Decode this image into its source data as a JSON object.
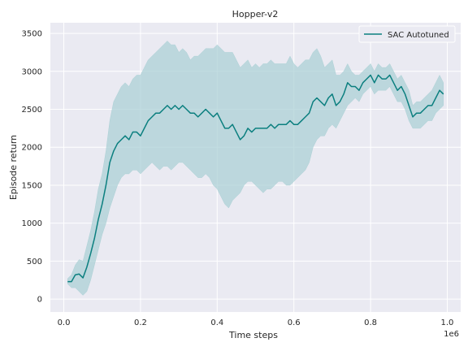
{
  "chart_data": {
    "type": "line",
    "title": "Hopper-v2",
    "xlabel": "Time steps",
    "ylabel": "Episode return",
    "x_offset_label": "1e6",
    "xlim": [
      -0.035,
      1.035
    ],
    "ylim": [
      -170,
      3640
    ],
    "xticks": [
      0.0,
      0.2,
      0.4,
      0.6,
      0.8,
      1.0
    ],
    "xtick_labels": [
      "0.0",
      "0.2",
      "0.4",
      "0.6",
      "0.8",
      "1.0"
    ],
    "yticks": [
      0,
      500,
      1000,
      1500,
      2000,
      2500,
      3000,
      3500
    ],
    "ytick_labels": [
      "0",
      "500",
      "1000",
      "1500",
      "2000",
      "2500",
      "3000",
      "3500"
    ],
    "grid": true,
    "legend_position": "top-right",
    "colors": {
      "line": "#0b7f7f",
      "band": "#a8cfd4",
      "background": "#eaeaf2",
      "grid": "#ffffff"
    },
    "series": [
      {
        "name": "SAC Autotuned",
        "x": [
          0.01,
          0.02,
          0.03,
          0.04,
          0.05,
          0.06,
          0.07,
          0.08,
          0.09,
          0.1,
          0.11,
          0.12,
          0.13,
          0.14,
          0.15,
          0.16,
          0.17,
          0.18,
          0.19,
          0.2,
          0.21,
          0.22,
          0.23,
          0.24,
          0.25,
          0.26,
          0.27,
          0.28,
          0.29,
          0.3,
          0.31,
          0.32,
          0.33,
          0.34,
          0.35,
          0.36,
          0.37,
          0.38,
          0.39,
          0.4,
          0.41,
          0.42,
          0.43,
          0.44,
          0.45,
          0.46,
          0.47,
          0.48,
          0.49,
          0.5,
          0.51,
          0.52,
          0.53,
          0.54,
          0.55,
          0.56,
          0.57,
          0.58,
          0.59,
          0.6,
          0.61,
          0.62,
          0.63,
          0.64,
          0.65,
          0.66,
          0.67,
          0.68,
          0.69,
          0.7,
          0.71,
          0.72,
          0.73,
          0.74,
          0.75,
          0.76,
          0.77,
          0.78,
          0.79,
          0.8,
          0.81,
          0.82,
          0.83,
          0.84,
          0.85,
          0.86,
          0.87,
          0.88,
          0.89,
          0.9,
          0.91,
          0.92,
          0.93,
          0.94,
          0.95,
          0.96,
          0.97,
          0.98,
          0.99
        ],
        "y": [
          230,
          230,
          320,
          330,
          280,
          420,
          600,
          800,
          1050,
          1250,
          1500,
          1800,
          1950,
          2050,
          2100,
          2150,
          2100,
          2200,
          2200,
          2150,
          2250,
          2350,
          2400,
          2450,
          2450,
          2500,
          2550,
          2500,
          2550,
          2500,
          2550,
          2500,
          2450,
          2450,
          2400,
          2450,
          2500,
          2450,
          2400,
          2450,
          2350,
          2250,
          2250,
          2300,
          2200,
          2100,
          2150,
          2250,
          2200,
          2250,
          2250,
          2250,
          2250,
          2300,
          2250,
          2300,
          2300,
          2300,
          2350,
          2300,
          2300,
          2350,
          2400,
          2450,
          2600,
          2650,
          2600,
          2550,
          2650,
          2700,
          2550,
          2600,
          2700,
          2850,
          2800,
          2800,
          2750,
          2850,
          2900,
          2950,
          2850,
          2950,
          2900,
          2900,
          2950,
          2850,
          2750,
          2800,
          2700,
          2550,
          2400,
          2450,
          2450,
          2500,
          2550,
          2550,
          2650,
          2750,
          2700
        ],
        "y_lower": [
          200,
          150,
          150,
          100,
          50,
          100,
          250,
          450,
          650,
          850,
          1000,
          1200,
          1350,
          1500,
          1600,
          1650,
          1650,
          1700,
          1700,
          1650,
          1700,
          1750,
          1800,
          1750,
          1700,
          1750,
          1750,
          1700,
          1750,
          1800,
          1800,
          1750,
          1700,
          1650,
          1600,
          1600,
          1650,
          1600,
          1500,
          1450,
          1350,
          1250,
          1200,
          1300,
          1350,
          1400,
          1500,
          1550,
          1550,
          1500,
          1450,
          1400,
          1450,
          1450,
          1500,
          1550,
          1550,
          1500,
          1500,
          1550,
          1600,
          1650,
          1700,
          1800,
          2000,
          2100,
          2150,
          2150,
          2250,
          2300,
          2250,
          2350,
          2450,
          2550,
          2600,
          2650,
          2600,
          2700,
          2750,
          2800,
          2700,
          2750,
          2750,
          2750,
          2800,
          2700,
          2600,
          2600,
          2500,
          2350,
          2250,
          2250,
          2250,
          2300,
          2350,
          2350,
          2450,
          2500,
          2550
        ],
        "y_upper": [
          270,
          320,
          450,
          520,
          500,
          700,
          900,
          1150,
          1450,
          1650,
          1950,
          2350,
          2600,
          2700,
          2800,
          2850,
          2800,
          2900,
          2950,
          2950,
          3050,
          3150,
          3200,
          3250,
          3300,
          3350,
          3400,
          3350,
          3350,
          3250,
          3300,
          3250,
          3150,
          3200,
          3200,
          3250,
          3300,
          3300,
          3300,
          3350,
          3300,
          3250,
          3250,
          3250,
          3150,
          3050,
          3100,
          3150,
          3050,
          3100,
          3050,
          3100,
          3100,
          3150,
          3100,
          3100,
          3100,
          3100,
          3200,
          3100,
          3050,
          3100,
          3150,
          3150,
          3250,
          3300,
          3200,
          3050,
          3100,
          3150,
          2950,
          2950,
          3000,
          3100,
          3000,
          2950,
          2950,
          3000,
          3050,
          3100,
          3000,
          3100,
          3050,
          3050,
          3100,
          3000,
          2900,
          2950,
          2850,
          2750,
          2550,
          2600,
          2600,
          2650,
          2700,
          2750,
          2850,
          2950,
          2850
        ]
      }
    ]
  }
}
